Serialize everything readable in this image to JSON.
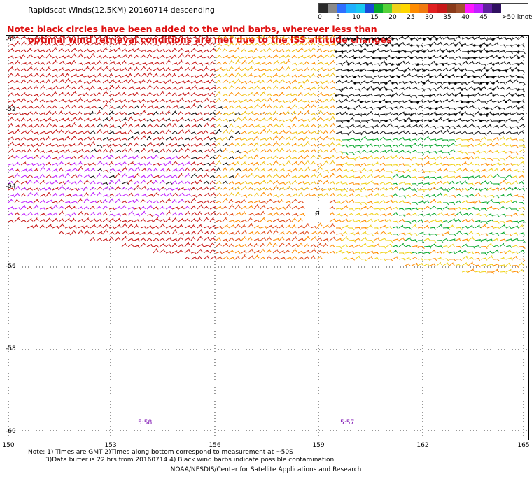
{
  "header": {
    "title": "Rapidscat Winds(12.5KM) 20160714 descending",
    "note_line1": "Note: black circles have been added to the wind barbs, wherever less than",
    "note_line2": "optimal wind retrieval conditions are met due to the ISS altitude changes"
  },
  "legend": {
    "labels": [
      "0",
      "5",
      "10",
      "15",
      "20",
      "25",
      "30",
      "35",
      "40",
      "45",
      ">50 knots"
    ],
    "colors": [
      "#2a2a2a",
      "#8a8a8a",
      "#2f6fff",
      "#1fb0ff",
      "#19c8f0",
      "#1a48d8",
      "#07a82b",
      "#55d23a",
      "#f0d21a",
      "#ffd700",
      "#ff8c00",
      "#f07a10",
      "#e02020",
      "#c81818",
      "#8a3a1a",
      "#a0522d",
      "#ff18ff",
      "#c020ff",
      "#6020a0",
      "#301060"
    ]
  },
  "map": {
    "lat_labels": [
      "-50",
      "-52",
      "-54",
      "-56",
      "-58",
      "-60"
    ],
    "lon_labels": [
      "150",
      "153",
      "156",
      "159",
      "162",
      "165"
    ],
    "pass_times": [
      "5:58",
      "5:57"
    ]
  },
  "footer": {
    "line1": "Note: 1) Times are GMT 2)Times along bottom correspond to measurement at ~50S",
    "line2": "3)Data buffer is 22 hrs from 20160714 4) Black wind barbs indicate possible contamination",
    "credit": "NOAA/NESDIS/Center for Satellite Applications and Research"
  }
}
